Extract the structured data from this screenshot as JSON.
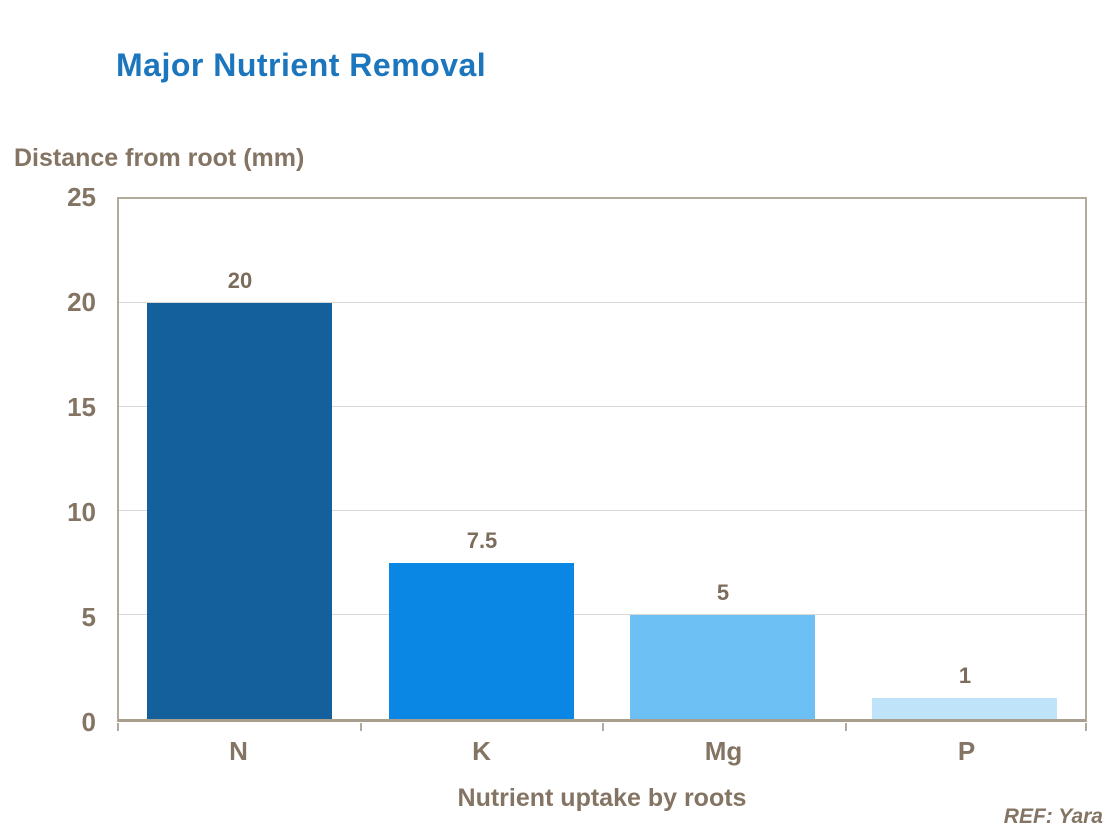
{
  "title": "Major Nutrient Removal",
  "y_axis_title": "Distance from root (mm)",
  "x_axis_title": "Nutrient uptake by roots",
  "ref_note": "REF: Yara",
  "colors": {
    "title_blue": "#1B76BD",
    "text_taupe": "#847463",
    "axis_border": "#B3AA9B",
    "gridline": "#D8D8D8",
    "bar_colors": [
      "#14609D",
      "#0A86E4",
      "#6CC0F4",
      "#BFE3F8"
    ]
  },
  "chart_data": {
    "type": "bar",
    "title": "Major Nutrient Removal",
    "categories": [
      "N",
      "K",
      "Mg",
      "P"
    ],
    "values": [
      20,
      7.5,
      5,
      1
    ],
    "value_labels": [
      "20",
      "7.5",
      "5",
      "1"
    ],
    "xlabel": "Nutrient uptake by roots",
    "ylabel": "Distance from root (mm)",
    "ylim": [
      0,
      25
    ],
    "yticks": [
      0,
      5,
      10,
      15,
      20,
      25
    ],
    "ytick_labels": [
      "0",
      "5",
      "10",
      "15",
      "20",
      "25"
    ],
    "grid": true,
    "legend": false,
    "annotations": [
      "REF: Yara"
    ]
  }
}
